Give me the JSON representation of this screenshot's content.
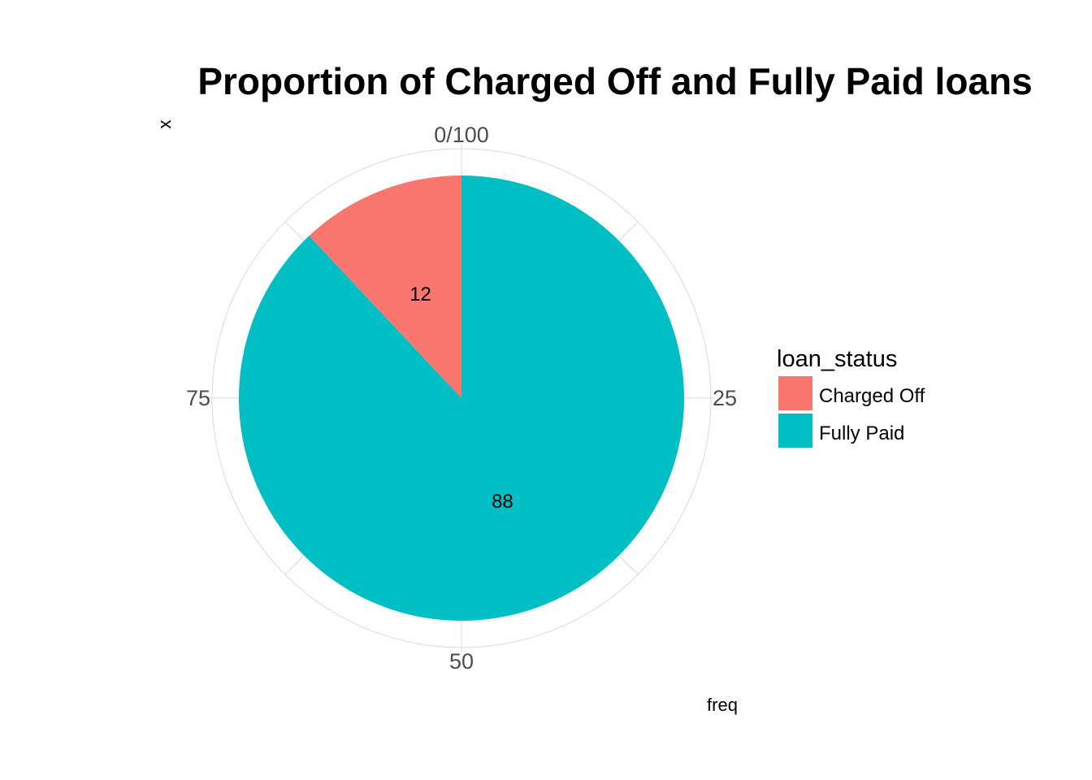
{
  "chart_data": {
    "type": "pie",
    "title": "Proportion of Charged Off and Fully Paid loans",
    "xlabel": "freq",
    "ylabel": "x",
    "theta_range": [
      0,
      100
    ],
    "theta_ticks": [
      "0/100",
      "25",
      "50",
      "75"
    ],
    "theta_tick_values": [
      0,
      25,
      50,
      75
    ],
    "grid": true,
    "legend": {
      "title": "loan_status",
      "placement": "right"
    },
    "slices": [
      {
        "label": "Fully Paid",
        "value": 88,
        "color": "#00BFC4",
        "value_label": "88"
      },
      {
        "label": "Charged Off",
        "value": 12,
        "color": "#F8766D",
        "value_label": "12"
      }
    ]
  }
}
